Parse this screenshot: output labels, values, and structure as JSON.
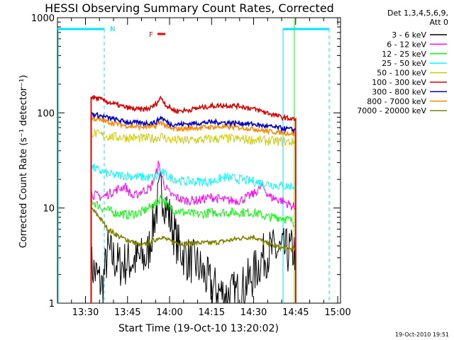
{
  "chart_data": {
    "type": "line",
    "title": "HESSI Observing Summary Count Rates, Corrected",
    "xlabel": "Start Time (19-Oct-10 13:20:02)",
    "ylabel": "Corrected Count Rate (s⁻¹ detector⁻¹)",
    "yscale": "log",
    "ylim": [
      1,
      1000
    ],
    "xlim": [
      "13:20",
      "15:01"
    ],
    "xticks": [
      "13:30",
      "13:45",
      "14:00",
      "14:15",
      "14:30",
      "14:45",
      "15:00"
    ],
    "yticks": [
      "1",
      "10",
      "100",
      "1000"
    ],
    "legend_title": [
      "Det 1,3,4,5,6,9,",
      "Att 0"
    ],
    "legend_position": "right",
    "series": [
      {
        "name": "3 - 6 keV",
        "color": "#000000",
        "x": [
          "13:32",
          "13:36",
          "13:38",
          "13:42",
          "13:47",
          "13:52",
          "13:55",
          "13:57",
          "14:00",
          "14:03",
          "14:06",
          "14:10",
          "14:15",
          "14:20",
          "14:25",
          "14:30",
          "14:33",
          "14:36",
          "14:39",
          "14:42",
          "14:45"
        ],
        "y": [
          2.5,
          1.5,
          3.5,
          2.5,
          2.8,
          3.0,
          9.0,
          16.0,
          8.0,
          4.0,
          3.0,
          2.5,
          1.5,
          1.2,
          1.3,
          2.0,
          3.0,
          3.5,
          3.5,
          3.5,
          3.5
        ]
      },
      {
        "name": "6 - 12 keV",
        "color": "#ff00ff",
        "x": [
          "13:32",
          "13:36",
          "13:40",
          "13:44",
          "13:47",
          "13:50",
          "13:53",
          "13:55",
          "13:56",
          "13:58",
          "14:00",
          "14:05",
          "14:10",
          "14:15",
          "14:20",
          "14:25",
          "14:30",
          "14:33",
          "14:36",
          "14:40",
          "14:45"
        ],
        "y": [
          14,
          13,
          15,
          17,
          13,
          15,
          16,
          22,
          29,
          18,
          14,
          12,
          12,
          13,
          12,
          12,
          14,
          17,
          13,
          12,
          10
        ]
      },
      {
        "name": "12 - 25 keV",
        "color": "#00ff00",
        "x": [
          "13:32",
          "13:36",
          "13:40",
          "13:45",
          "13:50",
          "13:55",
          "13:57",
          "14:00",
          "14:05",
          "14:10",
          "14:15",
          "14:20",
          "14:25",
          "14:30",
          "14:35",
          "14:40",
          "14:45"
        ],
        "y": [
          12,
          10,
          9,
          8.5,
          9,
          11,
          13,
          10,
          9,
          8.5,
          9,
          9,
          9,
          9,
          8,
          8,
          7
        ]
      },
      {
        "name": "25 - 50 keV",
        "color": "#00ffff",
        "x": [
          "13:32",
          "13:36",
          "13:40",
          "13:45",
          "13:50",
          "13:55",
          "13:57",
          "14:00",
          "14:05",
          "14:10",
          "14:15",
          "14:20",
          "14:25",
          "14:30",
          "14:35",
          "14:40",
          "14:45"
        ],
        "y": [
          27,
          24,
          22,
          22,
          21,
          21,
          24,
          21,
          19,
          19,
          19,
          21,
          20,
          19,
          18,
          17,
          17
        ]
      },
      {
        "name": "50 - 100 keV",
        "color": "#cccc00",
        "x": [
          "13:32",
          "13:36",
          "13:40",
          "13:45",
          "13:50",
          "13:55",
          "13:57",
          "14:00",
          "14:05",
          "14:10",
          "14:15",
          "14:20",
          "14:25",
          "14:30",
          "14:35",
          "14:40",
          "14:45"
        ],
        "y": [
          62,
          58,
          56,
          55,
          54,
          54,
          57,
          52,
          51,
          52,
          53,
          54,
          53,
          52,
          51,
          50,
          49
        ]
      },
      {
        "name": "100 - 300 keV",
        "color": "#dd0000",
        "x": [
          "13:32",
          "13:35",
          "13:38",
          "13:41",
          "13:44",
          "13:47",
          "13:50",
          "13:53",
          "13:55",
          "13:57",
          "13:59",
          "14:02",
          "14:06",
          "14:10",
          "14:15",
          "14:20",
          "14:25",
          "14:30",
          "14:35",
          "14:40",
          "14:45"
        ],
        "y": [
          148,
          140,
          130,
          122,
          115,
          110,
          108,
          112,
          123,
          145,
          118,
          105,
          106,
          112,
          118,
          120,
          118,
          110,
          100,
          90,
          85
        ]
      },
      {
        "name": "300 - 800 keV",
        "color": "#0000cc",
        "x": [
          "13:32",
          "13:36",
          "13:40",
          "13:45",
          "13:50",
          "13:55",
          "13:57",
          "14:00",
          "14:05",
          "14:10",
          "14:15",
          "14:20",
          "14:25",
          "14:30",
          "14:35",
          "14:40",
          "14:45"
        ],
        "y": [
          98,
          92,
          86,
          80,
          78,
          79,
          90,
          76,
          76,
          78,
          80,
          79,
          78,
          76,
          72,
          69,
          66
        ]
      },
      {
        "name": "800 - 7000 keV",
        "color": "#ff8800",
        "x": [
          "13:32",
          "13:36",
          "13:40",
          "13:45",
          "13:50",
          "13:55",
          "13:57",
          "14:00",
          "14:05",
          "14:10",
          "14:15",
          "14:20",
          "14:25",
          "14:30",
          "14:35",
          "14:40",
          "14:45"
        ],
        "y": [
          88,
          83,
          78,
          73,
          71,
          72,
          80,
          68,
          68,
          70,
          71,
          71,
          70,
          68,
          64,
          62,
          60
        ]
      },
      {
        "name": "7000 - 20000 keV",
        "color": "#808000",
        "x": [
          "13:32",
          "13:35",
          "13:38",
          "13:42",
          "13:46",
          "13:50",
          "13:54",
          "13:57",
          "14:00",
          "14:05",
          "14:10",
          "14:15",
          "14:20",
          "14:25",
          "14:30",
          "14:35",
          "14:40",
          "14:45"
        ],
        "y": [
          10,
          8,
          6,
          5,
          4.5,
          4,
          4.5,
          5,
          4.5,
          4.2,
          4.3,
          4.3,
          4.5,
          4.8,
          5,
          4.2,
          3.8,
          3.7
        ]
      }
    ],
    "annotations": {
      "night_label": "N",
      "flare_label": "F",
      "footer": "19-Oct-2010 19:51"
    }
  }
}
